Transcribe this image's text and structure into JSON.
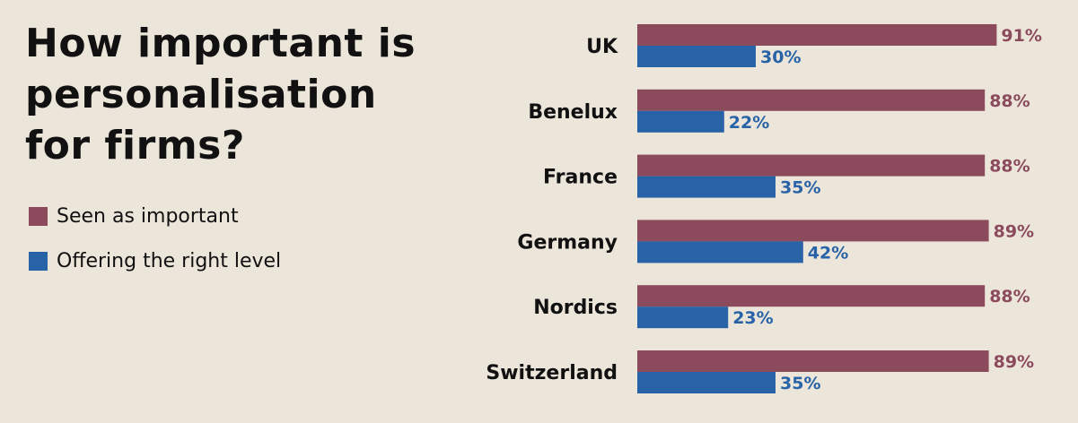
{
  "chart_data": {
    "type": "bar",
    "orientation": "horizontal",
    "title": "How important is personalisation for firms?",
    "categories": [
      "UK",
      "Benelux",
      "France",
      "Germany",
      "Nordics",
      "Switzerland"
    ],
    "series": [
      {
        "name": "Seen as important",
        "color": "#8b4b5d",
        "values": [
          91,
          88,
          88,
          89,
          88,
          89
        ],
        "labels": [
          "91%",
          "88%",
          "88%",
          "89%",
          "88%",
          "89%"
        ]
      },
      {
        "name": "Offering the right level",
        "color": "#2763a6",
        "values": [
          30,
          22,
          35,
          42,
          23,
          35
        ],
        "labels": [
          "30%",
          "22%",
          "35%",
          "42%",
          "23%",
          "35%"
        ]
      }
    ],
    "unit": "%",
    "xlim": [
      0,
      100
    ],
    "grid": false,
    "legend_position": "left"
  }
}
